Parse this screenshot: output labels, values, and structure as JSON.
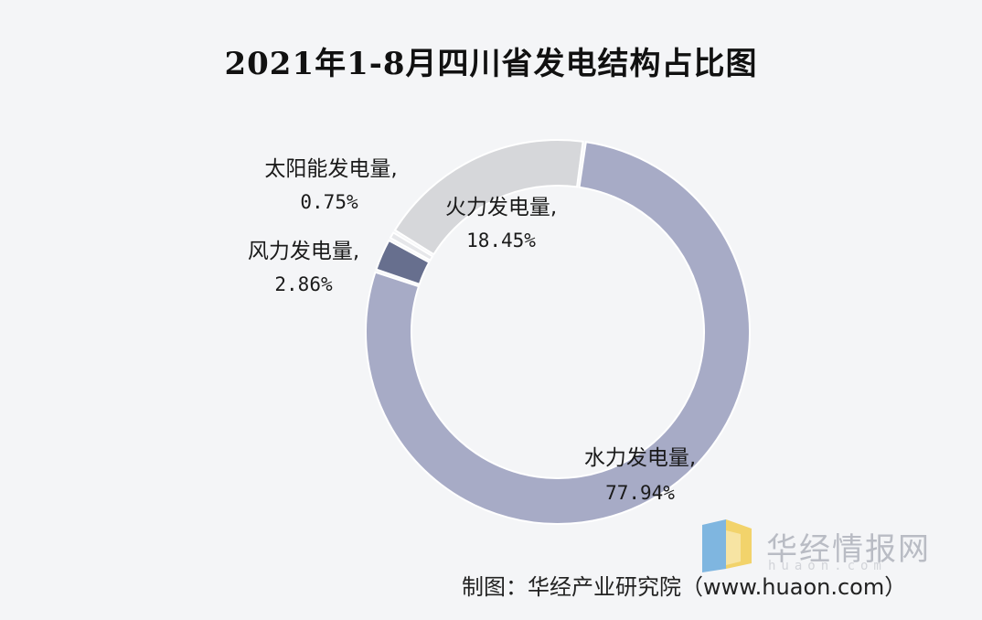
{
  "title": "2021年1-8月四川省发电结构占比图",
  "source": "制图：华经产业研究院（www.huaon.com）",
  "watermark": {
    "text": "华经情报网",
    "sub": "huaon.com"
  },
  "chart_data": {
    "type": "pie",
    "variant": "donut",
    "title": "2021年1-8月四川省发电结构占比图",
    "slices": [
      {
        "name": "水力发电量",
        "value": 77.94,
        "label": "77.94%",
        "color": "#a7abc6"
      },
      {
        "name": "风力发电量",
        "value": 2.86,
        "label": "2.86%",
        "color": "#676f8e"
      },
      {
        "name": "太阳能发电量",
        "value": 0.75,
        "label": "0.75%",
        "color": "#e6e7ea"
      },
      {
        "name": "火力发电量",
        "value": 18.45,
        "label": "18.45%",
        "color": "#d6d7da"
      }
    ]
  }
}
